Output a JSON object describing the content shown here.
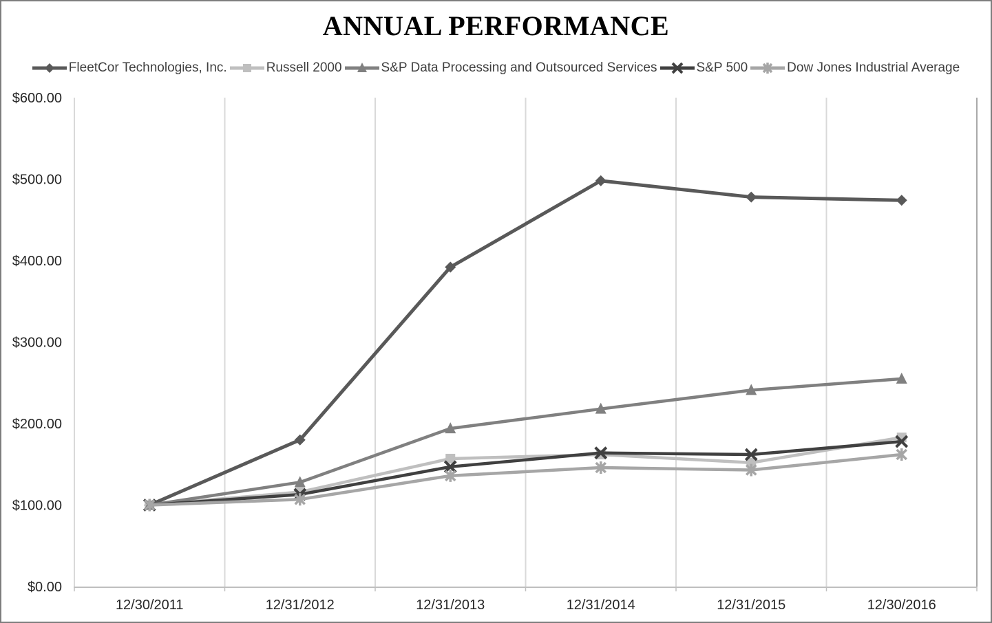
{
  "chart_data": {
    "type": "line",
    "title": "ANNUAL PERFORMANCE",
    "xlabel": "",
    "ylabel": "",
    "x_categories": [
      "12/30/2011",
      "12/31/2012",
      "12/31/2013",
      "12/31/2014",
      "12/31/2015",
      "12/30/2016"
    ],
    "ylim": [
      0,
      600
    ],
    "ytick_interval": 100,
    "ytick_labels": [
      "$0.00",
      "$100.00",
      "$200.00",
      "$300.00",
      "$400.00",
      "$500.00",
      "$600.00"
    ],
    "grid": "vertical-only",
    "legend_position": "top",
    "series": [
      {
        "name": "FleetCor Technologies, Inc.",
        "marker": "diamond",
        "color": "#595959",
        "values": [
          100,
          180,
          392,
          498,
          478,
          474
        ]
      },
      {
        "name": "Russell 2000",
        "marker": "square",
        "color": "#bfbfbf",
        "values": [
          100,
          116,
          157,
          162,
          152,
          183
        ]
      },
      {
        "name": "S&P Data Processing and Outsourced Services",
        "marker": "triangle",
        "color": "#808080",
        "values": [
          100,
          128,
          194,
          218,
          241,
          255
        ]
      },
      {
        "name": "S&P 500",
        "marker": "x",
        "color": "#404040",
        "values": [
          100,
          113,
          147,
          164,
          162,
          178
        ]
      },
      {
        "name": "Dow Jones Industrial Average",
        "marker": "asterisk",
        "color": "#a6a6a6",
        "values": [
          100,
          107,
          136,
          146,
          143,
          162
        ]
      }
    ],
    "colors": {
      "gridline": "#d9d9d9",
      "right_border_gridline": "#a9a9a9",
      "axis_line": "#bfbfbf",
      "tick_label": "#262626"
    }
  }
}
